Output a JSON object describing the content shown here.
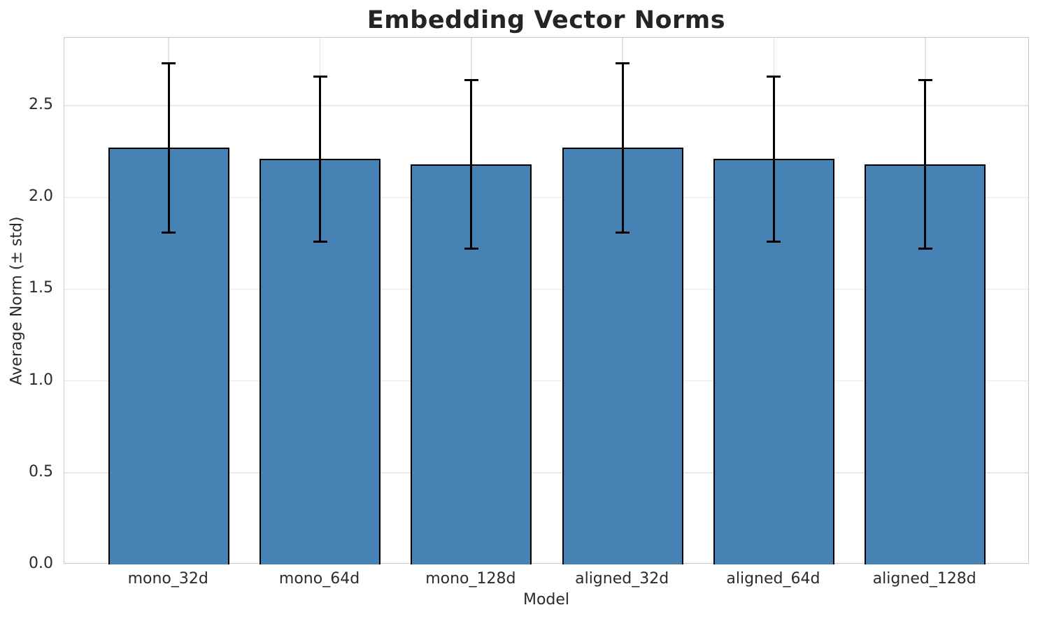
{
  "chart_data": {
    "type": "bar",
    "title": "Embedding Vector Norms",
    "xlabel": "Model",
    "ylabel": "Average Norm (± std)",
    "categories": [
      "mono_32d",
      "mono_64d",
      "mono_128d",
      "aligned_32d",
      "aligned_64d",
      "aligned_128d"
    ],
    "values": [
      2.27,
      2.21,
      2.18,
      2.27,
      2.21,
      2.18
    ],
    "std": [
      0.46,
      0.45,
      0.46,
      0.46,
      0.45,
      0.46
    ],
    "error_low": [
      1.81,
      1.76,
      1.72,
      1.81,
      1.76,
      1.72
    ],
    "error_high": [
      2.73,
      2.66,
      2.64,
      2.73,
      2.66,
      2.64
    ],
    "ylim": [
      0,
      2.87
    ],
    "xlim": [
      -0.69,
      5.69
    ],
    "bar_width": 0.8,
    "yticks": [
      "0.0",
      "0.5",
      "1.0",
      "1.5",
      "2.0",
      "2.5"
    ],
    "grid": "both",
    "legend": "none",
    "colors": {
      "bar_fill": "#4682B4",
      "bar_edge": "#000000",
      "error_bar": "#000000",
      "grid_h": "#e8e8e8",
      "grid_v": "#e2e2e2",
      "spine": "#c9c9c9",
      "text": "#2b2b2b",
      "title": "#242424",
      "background": "#ffffff"
    }
  }
}
